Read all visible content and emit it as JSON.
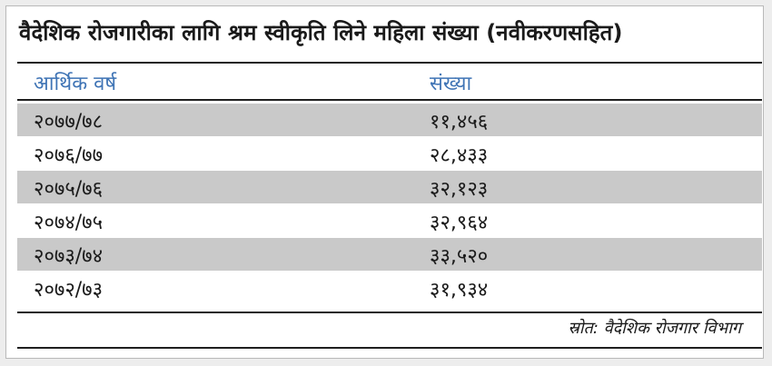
{
  "title": "वैदेशिक रोजगारीका लागि श्रम स्वीकृति लिने महिला संख्या (नवीकरणसहित)",
  "header": {
    "col1": "आर्थिक वर्ष",
    "col2": "संख्या"
  },
  "rows": [
    {
      "year": "२०७७/७८",
      "count": "११,४५६"
    },
    {
      "year": "२०७६/७७",
      "count": "२८,४३३"
    },
    {
      "year": "२०७५/७६",
      "count": "३२,१२३"
    },
    {
      "year": "२०७४/७५",
      "count": "३२,९६४"
    },
    {
      "year": "२०७३/७४",
      "count": "३३,५२०"
    },
    {
      "year": "२०७२/७३",
      "count": "३१,९३४"
    }
  ],
  "source": "स्रोत: वैदेशिक रोजगार विभाग",
  "colors": {
    "header_text": "#3f74b5",
    "shaded_row": "#c9c9c9",
    "rule": "#1f1f1f"
  }
}
